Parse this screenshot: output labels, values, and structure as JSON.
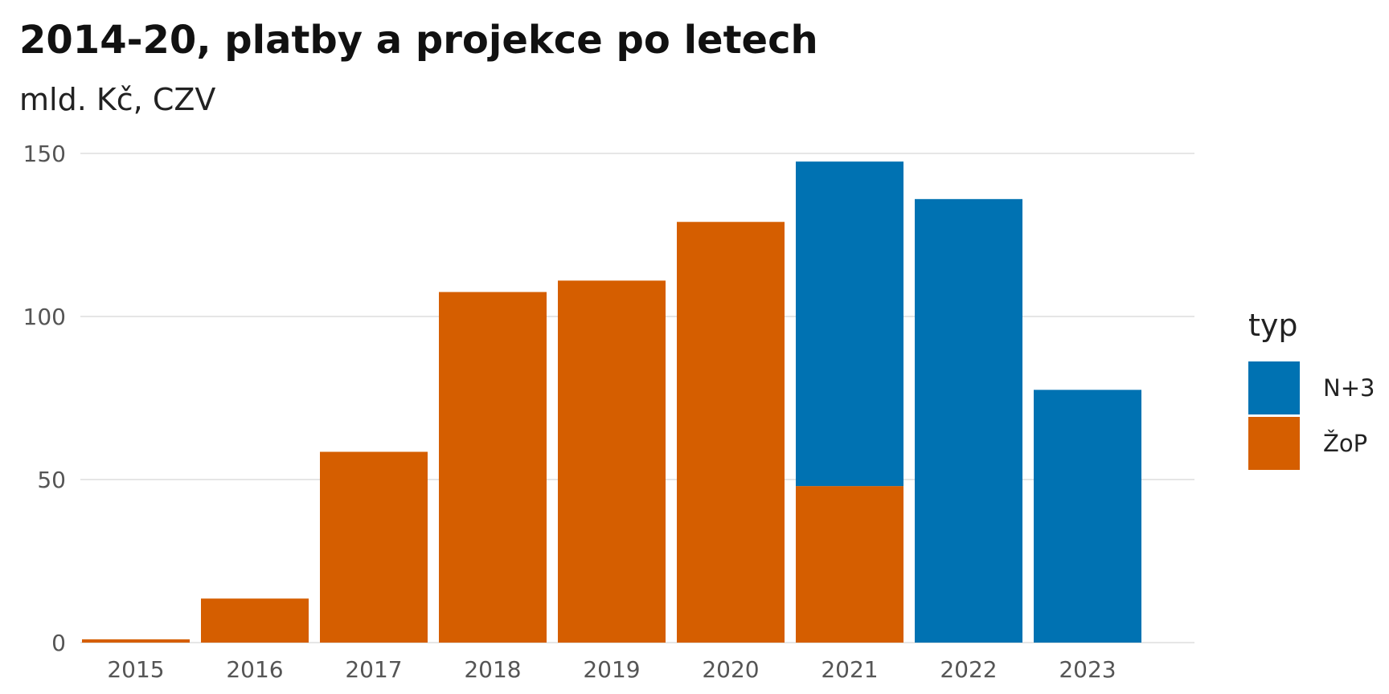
{
  "chart_data": {
    "type": "bar",
    "stacked": true,
    "title": "2014-20, platby a projekce po letech",
    "subtitle": "mld. Kč, CZV",
    "xlabel": "",
    "ylabel": "",
    "categories": [
      "2015",
      "2016",
      "2017",
      "2018",
      "2019",
      "2020",
      "2021",
      "2022",
      "2023"
    ],
    "series": [
      {
        "name": "ŽoP",
        "color": "#d55e00",
        "values": [
          1,
          13.5,
          58.5,
          107.5,
          111,
          129,
          48,
          0,
          0
        ]
      },
      {
        "name": "N+3",
        "color": "#0072b2",
        "values": [
          0,
          0,
          0,
          0,
          0,
          0,
          99.5,
          136,
          77.5
        ]
      }
    ],
    "ylim": [
      0,
      150
    ],
    "yticks": [
      0,
      50,
      100,
      150
    ],
    "grid": true,
    "legend": {
      "title": "typ",
      "position": "right",
      "items": [
        {
          "label": "N+3",
          "color": "#0072b2"
        },
        {
          "label": "ŽoP",
          "color": "#d55e00"
        }
      ]
    }
  }
}
